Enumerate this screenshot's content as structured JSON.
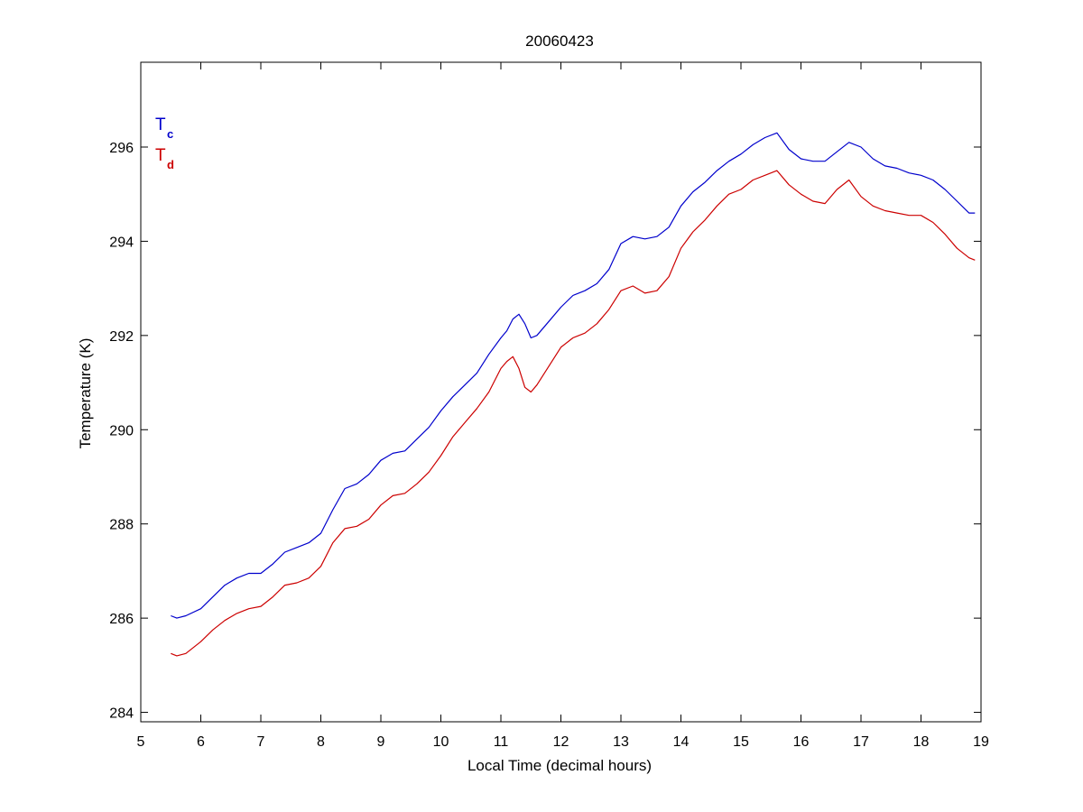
{
  "chart_data": {
    "type": "line",
    "title": "20060423",
    "xlabel": "Local Time (decimal hours)",
    "ylabel": "Temperature (K)",
    "xlim": [
      5,
      19
    ],
    "ylim": [
      283.8,
      297.8
    ],
    "x_ticks": [
      5,
      6,
      7,
      8,
      9,
      10,
      11,
      12,
      13,
      14,
      15,
      16,
      17,
      18,
      19
    ],
    "y_ticks": [
      284,
      286,
      288,
      290,
      292,
      294,
      296
    ],
    "grid": false,
    "legend": {
      "placement": "top-left",
      "entries": [
        {
          "main": "T",
          "sub": "c",
          "color": "#0000cc"
        },
        {
          "main": "T",
          "sub": "d",
          "color": "#cc0000"
        }
      ]
    },
    "series": [
      {
        "key": "tc",
        "color": "#0000cc",
        "x": [
          5.5,
          5.6,
          5.75,
          6.0,
          6.2,
          6.4,
          6.6,
          6.8,
          7.0,
          7.2,
          7.4,
          7.6,
          7.8,
          8.0,
          8.2,
          8.4,
          8.6,
          8.8,
          9.0,
          9.2,
          9.4,
          9.6,
          9.8,
          10.0,
          10.2,
          10.4,
          10.6,
          10.8,
          11.0,
          11.1,
          11.2,
          11.3,
          11.4,
          11.5,
          11.6,
          11.8,
          12.0,
          12.2,
          12.4,
          12.6,
          12.8,
          13.0,
          13.2,
          13.4,
          13.6,
          13.8,
          14.0,
          14.2,
          14.4,
          14.6,
          14.8,
          15.0,
          15.2,
          15.4,
          15.6,
          15.8,
          16.0,
          16.2,
          16.4,
          16.6,
          16.8,
          17.0,
          17.2,
          17.4,
          17.6,
          17.8,
          18.0,
          18.2,
          18.4,
          18.6,
          18.8,
          18.9
        ],
        "y": [
          286.05,
          286.0,
          286.05,
          286.2,
          286.45,
          286.7,
          286.85,
          286.95,
          286.95,
          287.15,
          287.4,
          287.5,
          287.6,
          287.8,
          288.3,
          288.75,
          288.85,
          289.05,
          289.35,
          289.5,
          289.55,
          289.8,
          290.05,
          290.4,
          290.7,
          290.95,
          291.2,
          291.6,
          291.95,
          292.1,
          292.35,
          292.45,
          292.25,
          291.95,
          292.0,
          292.3,
          292.6,
          292.85,
          292.95,
          293.1,
          293.4,
          293.95,
          294.1,
          294.05,
          294.1,
          294.3,
          294.75,
          295.05,
          295.25,
          295.5,
          295.7,
          295.85,
          296.05,
          296.2,
          296.3,
          295.95,
          295.75,
          295.7,
          295.7,
          295.9,
          296.1,
          296.0,
          295.75,
          295.6,
          295.55,
          295.45,
          295.4,
          295.3,
          295.1,
          294.85,
          294.6,
          294.6
        ]
      },
      {
        "key": "td",
        "color": "#cc0000",
        "x": [
          5.5,
          5.6,
          5.75,
          6.0,
          6.2,
          6.4,
          6.6,
          6.8,
          7.0,
          7.2,
          7.4,
          7.6,
          7.8,
          8.0,
          8.2,
          8.4,
          8.6,
          8.8,
          9.0,
          9.2,
          9.4,
          9.6,
          9.8,
          10.0,
          10.2,
          10.4,
          10.6,
          10.8,
          11.0,
          11.1,
          11.2,
          11.3,
          11.4,
          11.5,
          11.6,
          11.8,
          12.0,
          12.2,
          12.4,
          12.6,
          12.8,
          13.0,
          13.2,
          13.4,
          13.6,
          13.8,
          14.0,
          14.2,
          14.4,
          14.6,
          14.8,
          15.0,
          15.2,
          15.4,
          15.6,
          15.8,
          16.0,
          16.2,
          16.4,
          16.6,
          16.8,
          17.0,
          17.2,
          17.4,
          17.6,
          17.8,
          18.0,
          18.2,
          18.4,
          18.6,
          18.8,
          18.9
        ],
        "y": [
          285.25,
          285.2,
          285.25,
          285.5,
          285.75,
          285.95,
          286.1,
          286.2,
          286.25,
          286.45,
          286.7,
          286.75,
          286.85,
          287.1,
          287.6,
          287.9,
          287.95,
          288.1,
          288.4,
          288.6,
          288.65,
          288.85,
          289.1,
          289.45,
          289.85,
          290.15,
          290.45,
          290.8,
          291.3,
          291.45,
          291.55,
          291.3,
          290.9,
          290.8,
          290.95,
          291.35,
          291.75,
          291.95,
          292.05,
          292.25,
          292.55,
          292.95,
          293.05,
          292.9,
          292.95,
          293.25,
          293.85,
          294.2,
          294.45,
          294.75,
          295.0,
          295.1,
          295.3,
          295.4,
          295.5,
          295.2,
          295.0,
          294.85,
          294.8,
          295.1,
          295.3,
          294.95,
          294.75,
          294.65,
          294.6,
          294.55,
          294.55,
          294.4,
          294.15,
          293.85,
          293.65,
          293.6
        ]
      }
    ]
  }
}
